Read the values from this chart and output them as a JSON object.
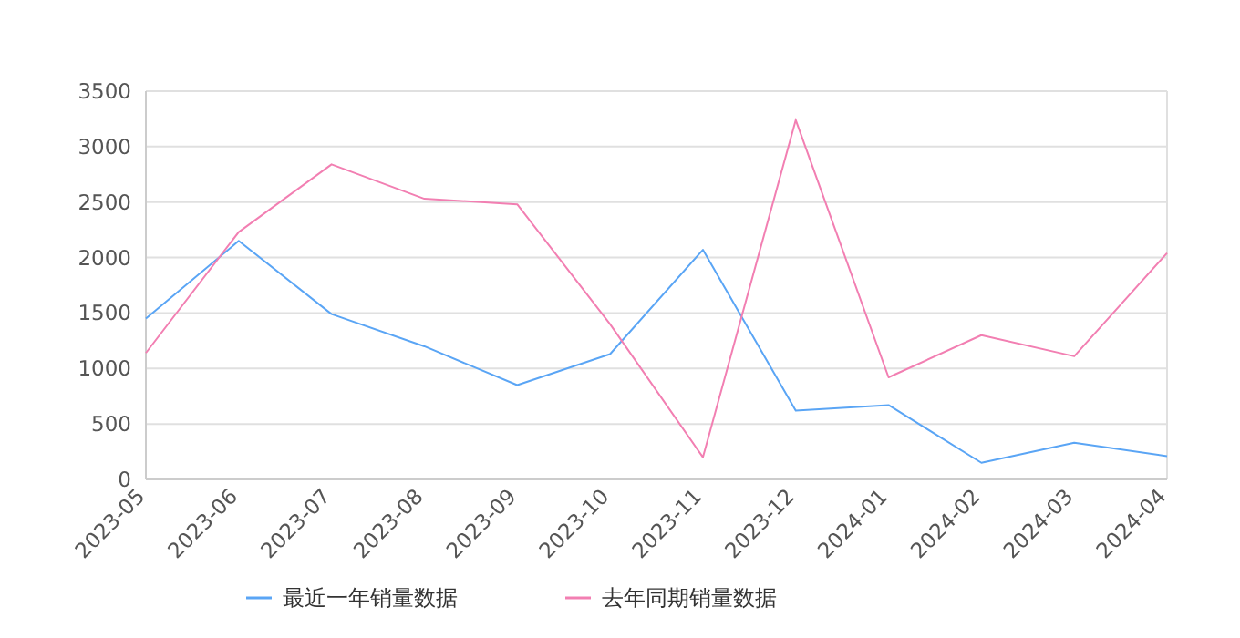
{
  "chart_data": {
    "type": "line",
    "categories": [
      "2023-05",
      "2023-06",
      "2023-07",
      "2023-08",
      "2023-09",
      "2023-10",
      "2023-11",
      "2023-12",
      "2024-01",
      "2024-02",
      "2024-03",
      "2024-04"
    ],
    "series": [
      {
        "name": "最近一年销量数据",
        "color": "#5aa5f5",
        "values": [
          1450,
          2150,
          1490,
          1200,
          850,
          1130,
          2070,
          620,
          670,
          150,
          330,
          210
        ]
      },
      {
        "name": "去年同期销量数据",
        "color": "#f27fb2",
        "values": [
          1140,
          2230,
          2840,
          2530,
          2480,
          1400,
          200,
          3240,
          920,
          1300,
          1110,
          2040
        ]
      }
    ],
    "ylim": [
      0,
      3500
    ],
    "yticks": [
      0,
      500,
      1000,
      1500,
      2000,
      2500,
      3000,
      3500
    ],
    "grid": "y",
    "legend": "bottom",
    "marker": "none",
    "line_style": "solid"
  }
}
